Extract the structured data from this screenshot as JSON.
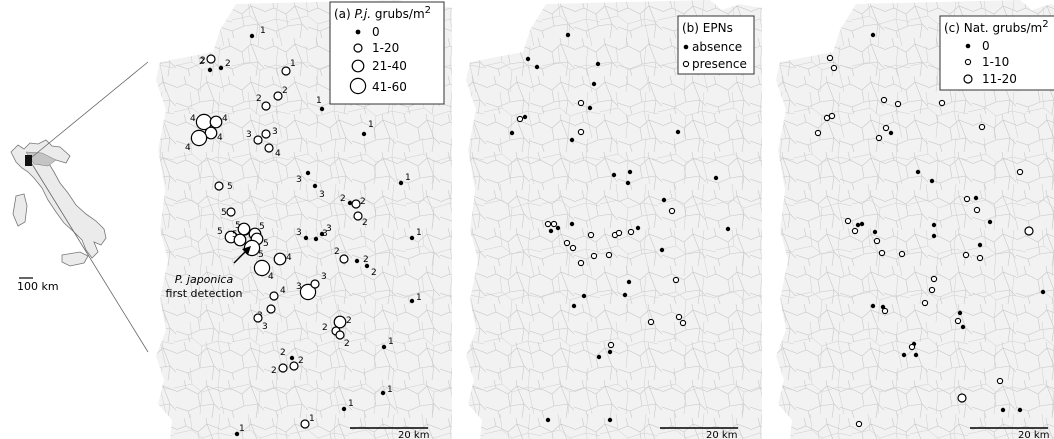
{
  "inset": {
    "scale_label": "100 km"
  },
  "panels": [
    {
      "title_prefix": "(a) ",
      "title_italic": "P.j.",
      "title_suffix": " grubs/m",
      "title_sup": "2",
      "legend": [
        "0",
        "1-20",
        "21-40",
        "41-60"
      ],
      "scale_label": "20 km",
      "annotation_line1": "P. japonica",
      "annotation_line2": "first detection"
    },
    {
      "title_prefix": "(b) EPNs",
      "legend": [
        "absence",
        "presence"
      ],
      "scale_label": "20 km"
    },
    {
      "title_prefix": "(c) Nat. grubs/m",
      "title_sup": "2",
      "legend": [
        "0",
        "1-10",
        "11-20"
      ],
      "scale_label": "20 km"
    }
  ],
  "sites_a": [
    {
      "d": 0,
      "n": "1"
    },
    {
      "d": 0,
      "n": "2"
    },
    {
      "d": 0,
      "n": "2"
    },
    {
      "d": 1,
      "n": "2"
    },
    {
      "d": 1,
      "n": "1"
    },
    {
      "d": 1,
      "n": "2"
    },
    {
      "d": 1,
      "n": "2"
    },
    {
      "d": 0,
      "n": "1"
    },
    {
      "d": 0,
      "n": "1"
    },
    {
      "d": 3,
      "n": "4"
    },
    {
      "d": 2,
      "n": "4"
    },
    {
      "d": 3,
      "n": "4"
    },
    {
      "d": 2,
      "n": "4"
    },
    {
      "d": 1,
      "n": "3"
    },
    {
      "d": 1,
      "n": "4"
    },
    {
      "d": 1,
      "n": "3"
    },
    {
      "d": 0,
      "n": "3"
    },
    {
      "d": 0,
      "n": "3"
    },
    {
      "d": 0,
      "n": "1"
    },
    {
      "d": 0,
      "n": "2"
    },
    {
      "d": 1,
      "n": "2"
    },
    {
      "d": 1,
      "n": "2"
    },
    {
      "d": 1,
      "n": "5"
    },
    {
      "d": 1,
      "n": "5"
    },
    {
      "d": 1,
      "n": "5"
    },
    {
      "d": 2,
      "n": "5"
    },
    {
      "d": 2,
      "n": "5"
    },
    {
      "d": 2,
      "n": "5"
    },
    {
      "d": 2,
      "n": "5"
    },
    {
      "d": 2,
      "n": "5"
    },
    {
      "d": 3,
      "n": "5"
    },
    {
      "d": 2,
      "n": "4"
    },
    {
      "d": 3,
      "n": "4"
    },
    {
      "d": 0,
      "n": "3"
    },
    {
      "d": 0,
      "n": "3"
    },
    {
      "d": 0,
      "n": "3"
    },
    {
      "d": 1,
      "n": "2"
    },
    {
      "d": 0,
      "n": "2"
    },
    {
      "d": 0,
      "n": "2"
    },
    {
      "d": 0,
      "n": "1"
    },
    {
      "d": 3,
      "n": "3"
    },
    {
      "d": 1,
      "n": "3"
    },
    {
      "d": 1,
      "n": "4"
    },
    {
      "d": 1,
      "n": "3"
    },
    {
      "d": 1,
      "n": "3"
    },
    {
      "d": 0,
      "n": "1"
    },
    {
      "d": 2,
      "n": "2"
    },
    {
      "d": 1,
      "n": "2"
    },
    {
      "d": 1,
      "n": "2"
    },
    {
      "d": 0,
      "n": "1"
    },
    {
      "d": 0,
      "n": "2"
    },
    {
      "d": 1,
      "n": "2"
    },
    {
      "d": 1,
      "n": "2"
    },
    {
      "d": 0,
      "n": "1"
    },
    {
      "d": 0,
      "n": "1"
    },
    {
      "d": 1,
      "n": "1"
    },
    {
      "d": 0,
      "n": "1"
    }
  ],
  "sites_b": [
    "presence",
    "absence",
    "absence",
    "absence",
    "absence",
    "presence",
    "absence",
    "presence",
    "absence",
    "absence",
    "presence",
    "presence",
    "absence",
    "absence",
    "absence",
    "absence",
    "presence",
    "presence",
    "presence",
    "presence",
    "presence",
    "absence",
    "presence",
    "presence",
    "absence",
    "absence",
    "absence",
    "presence",
    "absence",
    "presence",
    "absence",
    "presence",
    "absence",
    "absence",
    "absence",
    "presence",
    "absence",
    "absence",
    "presence",
    "presence",
    "presence",
    "absence",
    "presence",
    "absence",
    "absence",
    "absence",
    "absence",
    "absence",
    "absence"
  ],
  "sites_c": [
    "1-10",
    "1-10",
    "1-10",
    "1-10",
    "1-10",
    "1-10",
    "0",
    "1-10",
    "0",
    "1-10",
    "1-10",
    "0",
    "1-10",
    "1-10",
    "0",
    "0",
    "1-10",
    "1-10",
    "1-10",
    "0",
    "0",
    "1-10",
    "1-10",
    "0",
    "0",
    "1-10",
    "1-10",
    "0",
    "1-10",
    "1-10",
    "0",
    "1-10",
    "1-10",
    "1-10",
    "0",
    "1-10",
    "0",
    "0",
    "0",
    "11-20",
    "11-20",
    "1-10",
    "1-10",
    "0",
    "0",
    "0",
    "1-10",
    "1-10",
    "1-10",
    "0",
    "0",
    "0",
    "0"
  ]
}
